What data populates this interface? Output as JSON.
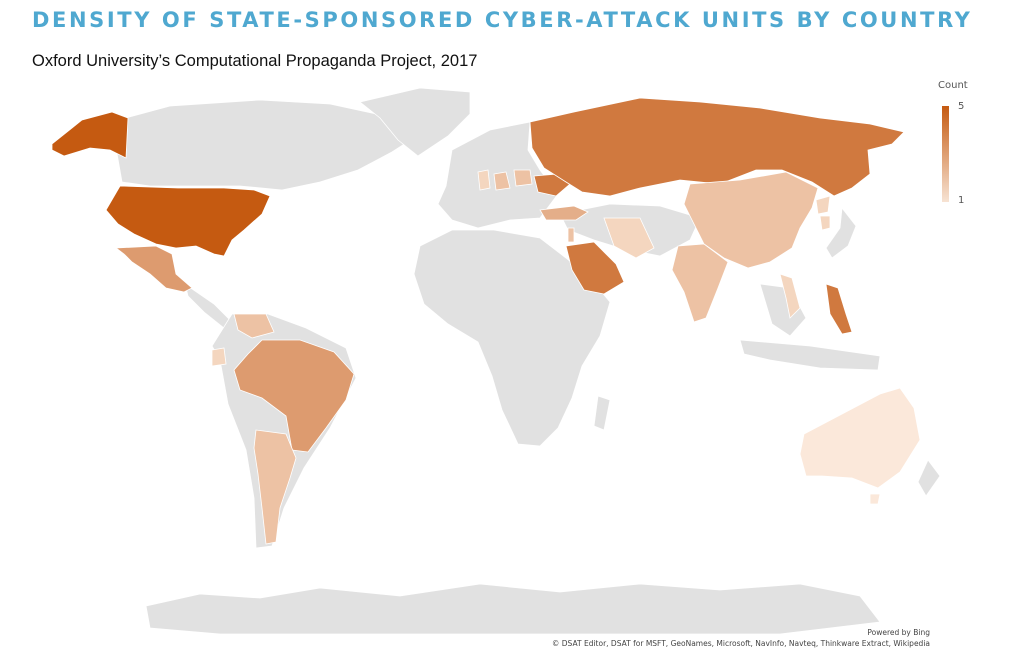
{
  "title": "DENSITY OF STATE-SPONSORED CYBER-ATTACK UNITS BY COUNTRY",
  "subtitle": "Oxford University’s Computational Propaganda Project, 2017",
  "legend": {
    "title": "Count",
    "max_label": "5",
    "min_label": "1",
    "max_color": "#c55a11",
    "min_color": "#f7e3d3"
  },
  "base_land_color": "#e1e1e1",
  "countries": [
    {
      "name": "United States",
      "count": 5
    },
    {
      "name": "Russia",
      "count": 4
    },
    {
      "name": "Saudi Arabia",
      "count": 4
    },
    {
      "name": "Ukraine",
      "count": 4
    },
    {
      "name": "Philippines",
      "count": 4
    },
    {
      "name": "Brazil",
      "count": 3
    },
    {
      "name": "Mexico",
      "count": 3
    },
    {
      "name": "Turkey",
      "count": 3
    },
    {
      "name": "China",
      "count": 2
    },
    {
      "name": "India",
      "count": 2
    },
    {
      "name": "Argentina",
      "count": 2
    },
    {
      "name": "Venezuela",
      "count": 2
    },
    {
      "name": "Germany",
      "count": 2
    },
    {
      "name": "Poland",
      "count": 2
    },
    {
      "name": "Israel",
      "count": 2
    },
    {
      "name": "Iran",
      "count": 1
    },
    {
      "name": "Australia",
      "count": 1
    },
    {
      "name": "Ecuador",
      "count": 1
    },
    {
      "name": "South Korea",
      "count": 1
    },
    {
      "name": "North Korea",
      "count": 1
    },
    {
      "name": "Vietnam",
      "count": 1
    },
    {
      "name": "United Kingdom",
      "count": 1
    }
  ],
  "attribution": {
    "powered_by": "Powered by Bing",
    "sources": "© DSAT Editor, DSAT for MSFT, GeoNames, Microsoft, NavInfo, Navteq, Thinkware Extract, Wikipedia"
  }
}
